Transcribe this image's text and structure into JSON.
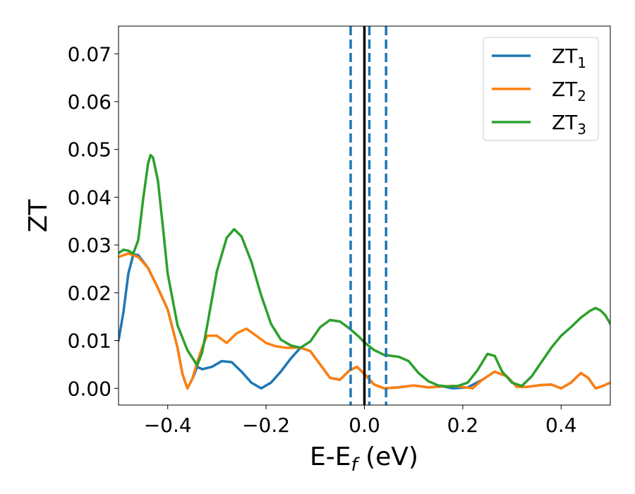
{
  "chart_data": {
    "type": "line",
    "xlabel": "E-E",
    "xlabel_sub": "f",
    "xlabel_unit": " (eV)",
    "ylabel": "ZT",
    "xlim": [
      -0.5,
      0.5
    ],
    "ylim": [
      -0.0035,
      0.0758
    ],
    "xticks": [
      -0.4,
      -0.2,
      0.0,
      0.2,
      0.4
    ],
    "xtick_labels": [
      "−0.4",
      "−0.2",
      "0.0",
      "0.2",
      "0.4"
    ],
    "yticks": [
      0.0,
      0.01,
      0.02,
      0.03,
      0.04,
      0.05,
      0.06,
      0.07
    ],
    "ytick_labels": [
      "0.00",
      "0.01",
      "0.02",
      "0.03",
      "0.04",
      "0.05",
      "0.06",
      "0.07"
    ],
    "grid": false,
    "legend_position": "top-right",
    "vlines": [
      {
        "x": 0.0,
        "style": "solid",
        "color": "#000000"
      },
      {
        "x": -0.028,
        "style": "dashed",
        "color": "#1f77b4"
      },
      {
        "x": 0.01,
        "style": "dashed",
        "color": "#1f77b4"
      },
      {
        "x": 0.044,
        "style": "dashed",
        "color": "#1f77b4"
      }
    ],
    "series": [
      {
        "name": "ZT",
        "sub": "1",
        "color": "#1f77b4",
        "points": [
          [
            -0.5,
            0.01
          ],
          [
            -0.49,
            0.016
          ],
          [
            -0.48,
            0.024
          ],
          [
            -0.47,
            0.028
          ],
          [
            -0.46,
            0.0279
          ],
          [
            -0.44,
            0.0252
          ],
          [
            -0.42,
            0.021
          ],
          [
            -0.4,
            0.0165
          ],
          [
            -0.38,
            0.0085
          ],
          [
            -0.37,
            0.003
          ],
          [
            -0.36,
            0.0
          ],
          [
            -0.35,
            0.002
          ],
          [
            -0.34,
            0.0045
          ],
          [
            -0.33,
            0.004
          ],
          [
            -0.31,
            0.0045
          ],
          [
            -0.29,
            0.0057
          ],
          [
            -0.27,
            0.0055
          ],
          [
            -0.25,
            0.0035
          ],
          [
            -0.23,
            0.0012
          ],
          [
            -0.21,
            0.0
          ],
          [
            -0.19,
            0.0012
          ],
          [
            -0.17,
            0.0035
          ],
          [
            -0.15,
            0.0062
          ],
          [
            -0.13,
            0.0085
          ],
          [
            -0.11,
            0.0078
          ],
          [
            -0.09,
            0.005
          ],
          [
            -0.07,
            0.0022
          ],
          [
            -0.05,
            0.0018
          ],
          [
            -0.03,
            0.0038
          ],
          [
            -0.015,
            0.0045
          ],
          [
            0.0,
            0.003
          ],
          [
            0.02,
            0.0008
          ],
          [
            0.04,
            0.0
          ],
          [
            0.07,
            0.0002
          ],
          [
            0.1,
            0.0006
          ],
          [
            0.13,
            0.0002
          ],
          [
            0.16,
            0.0004
          ],
          [
            0.18,
            0.0
          ],
          [
            0.21,
            0.0002
          ],
          [
            0.24,
            0.0018
          ],
          [
            0.265,
            0.0035
          ],
          [
            0.29,
            0.0025
          ],
          [
            0.31,
            0.0003
          ],
          [
            0.33,
            0.0003
          ],
          [
            0.36,
            0.0007
          ],
          [
            0.38,
            0.0008
          ],
          [
            0.4,
            0.0
          ],
          [
            0.42,
            0.0012
          ],
          [
            0.44,
            0.0032
          ],
          [
            0.455,
            0.0022
          ],
          [
            0.47,
            0.0
          ],
          [
            0.485,
            0.0005
          ],
          [
            0.5,
            0.0012
          ]
        ]
      },
      {
        "name": "ZT",
        "sub": "2",
        "color": "#ff7f0e",
        "points": [
          [
            -0.5,
            0.0275
          ],
          [
            -0.48,
            0.0282
          ],
          [
            -0.46,
            0.0275
          ],
          [
            -0.44,
            0.0252
          ],
          [
            -0.42,
            0.021
          ],
          [
            -0.4,
            0.0165
          ],
          [
            -0.38,
            0.0085
          ],
          [
            -0.37,
            0.003
          ],
          [
            -0.36,
            0.0
          ],
          [
            -0.35,
            0.002
          ],
          [
            -0.34,
            0.0055
          ],
          [
            -0.33,
            0.0085
          ],
          [
            -0.32,
            0.011
          ],
          [
            -0.3,
            0.011
          ],
          [
            -0.28,
            0.0095
          ],
          [
            -0.26,
            0.0115
          ],
          [
            -0.24,
            0.0125
          ],
          [
            -0.22,
            0.011
          ],
          [
            -0.2,
            0.0095
          ],
          [
            -0.18,
            0.0088
          ],
          [
            -0.16,
            0.0085
          ],
          [
            -0.13,
            0.0085
          ],
          [
            -0.11,
            0.0078
          ],
          [
            -0.09,
            0.005
          ],
          [
            -0.07,
            0.0022
          ],
          [
            -0.05,
            0.0018
          ],
          [
            -0.03,
            0.0038
          ],
          [
            -0.015,
            0.0045
          ],
          [
            0.0,
            0.003
          ],
          [
            0.02,
            0.0008
          ],
          [
            0.04,
            0.0
          ],
          [
            0.07,
            0.0002
          ],
          [
            0.1,
            0.0006
          ],
          [
            0.13,
            0.0002
          ],
          [
            0.16,
            0.0004
          ],
          [
            0.18,
            0.0005
          ],
          [
            0.2,
            0.0003
          ],
          [
            0.22,
            0.0
          ],
          [
            0.24,
            0.0018
          ],
          [
            0.265,
            0.0035
          ],
          [
            0.29,
            0.0025
          ],
          [
            0.31,
            0.0003
          ],
          [
            0.33,
            0.0003
          ],
          [
            0.36,
            0.0007
          ],
          [
            0.38,
            0.0008
          ],
          [
            0.4,
            0.0
          ],
          [
            0.42,
            0.0012
          ],
          [
            0.44,
            0.0032
          ],
          [
            0.455,
            0.0022
          ],
          [
            0.47,
            0.0
          ],
          [
            0.485,
            0.0005
          ],
          [
            0.5,
            0.0012
          ]
        ]
      },
      {
        "name": "ZT",
        "sub": "3",
        "color": "#2ca02c",
        "points": [
          [
            -0.5,
            0.0283
          ],
          [
            -0.49,
            0.029
          ],
          [
            -0.48,
            0.0288
          ],
          [
            -0.47,
            0.0282
          ],
          [
            -0.46,
            0.031
          ],
          [
            -0.45,
            0.0395
          ],
          [
            -0.44,
            0.047
          ],
          [
            -0.435,
            0.0488
          ],
          [
            -0.43,
            0.0483
          ],
          [
            -0.42,
            0.0435
          ],
          [
            -0.41,
            0.034
          ],
          [
            -0.4,
            0.024
          ],
          [
            -0.38,
            0.0132
          ],
          [
            -0.36,
            0.008
          ],
          [
            -0.34,
            0.0048
          ],
          [
            -0.33,
            0.0075
          ],
          [
            -0.32,
            0.013
          ],
          [
            -0.3,
            0.0245
          ],
          [
            -0.28,
            0.0315
          ],
          [
            -0.265,
            0.0333
          ],
          [
            -0.25,
            0.0318
          ],
          [
            -0.23,
            0.0265
          ],
          [
            -0.21,
            0.0195
          ],
          [
            -0.19,
            0.0135
          ],
          [
            -0.17,
            0.0102
          ],
          [
            -0.15,
            0.009
          ],
          [
            -0.13,
            0.0085
          ],
          [
            -0.11,
            0.0098
          ],
          [
            -0.09,
            0.0128
          ],
          [
            -0.07,
            0.0143
          ],
          [
            -0.05,
            0.014
          ],
          [
            -0.03,
            0.0125
          ],
          [
            -0.01,
            0.0107
          ],
          [
            0.0,
            0.0096
          ],
          [
            0.02,
            0.008
          ],
          [
            0.04,
            0.007
          ],
          [
            0.07,
            0.0066
          ],
          [
            0.09,
            0.0057
          ],
          [
            0.11,
            0.0032
          ],
          [
            0.13,
            0.0015
          ],
          [
            0.15,
            0.0006
          ],
          [
            0.17,
            0.0004
          ],
          [
            0.19,
            0.0005
          ],
          [
            0.21,
            0.0012
          ],
          [
            0.23,
            0.0038
          ],
          [
            0.25,
            0.0072
          ],
          [
            0.265,
            0.0068
          ],
          [
            0.28,
            0.0035
          ],
          [
            0.3,
            0.0012
          ],
          [
            0.32,
            0.0005
          ],
          [
            0.34,
            0.0025
          ],
          [
            0.36,
            0.0055
          ],
          [
            0.38,
            0.0085
          ],
          [
            0.4,
            0.011
          ],
          [
            0.42,
            0.0128
          ],
          [
            0.44,
            0.0148
          ],
          [
            0.46,
            0.0163
          ],
          [
            0.47,
            0.0168
          ],
          [
            0.48,
            0.0163
          ],
          [
            0.49,
            0.0153
          ],
          [
            0.5,
            0.0135
          ]
        ]
      }
    ]
  }
}
